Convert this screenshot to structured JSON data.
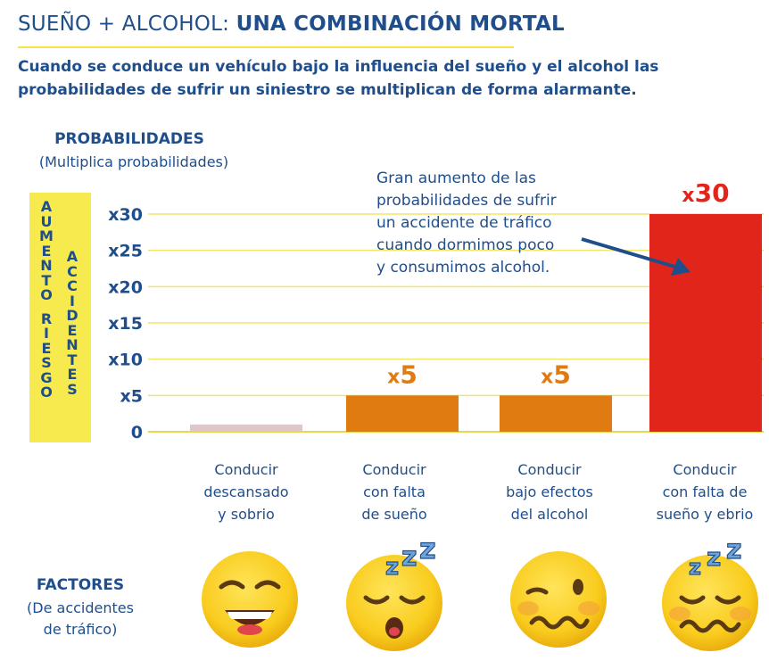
{
  "header": {
    "title_normal": "SUEÑO + ALCOHOL: ",
    "title_bold": "UNA COMBINACIÓN MORTAL",
    "subtitle_line1": "Cuando se conduce un vehículo bajo la influencia del sueño y el alcohol las",
    "subtitle_line2": "probabilidades de sufrir un siniestro se multiplican de forma alarmante."
  },
  "y_axis": {
    "title": "PROBABILIDADES",
    "subtitle": "(Multiplica probabilidades)",
    "side_label_1": "AUMENTO RIESGO",
    "side_label_2": "ACCIDENTES"
  },
  "annotation": {
    "lines": [
      "Gran aumento de las",
      "probabilidades de sufrir",
      "un accidente de tráfico",
      "cuando dormimos poco",
      "y consumimos alcohol."
    ]
  },
  "factors": {
    "title": "FACTORES",
    "subtitle_line1": "(De accidentes",
    "subtitle_line2": "de tráfico)",
    "emojis": [
      "happy-face-icon",
      "sleepy-face-icon",
      "woozy-face-icon",
      "sleepy-woozy-face-icon"
    ]
  },
  "chart_data": {
    "type": "bar",
    "title": "PROBABILIDADES",
    "ylabel": "(Multiplica probabilidades)",
    "y_ticks": [
      "0",
      "x5",
      "x10",
      "x15",
      "x20",
      "x25",
      "x30"
    ],
    "ylim": [
      0,
      30
    ],
    "categories": [
      [
        "Conducir",
        "descansado",
        "y sobrio"
      ],
      [
        "Conducir",
        "con falta",
        "de sueño"
      ],
      [
        "Conducir",
        "bajo efectos",
        "del alcohol"
      ],
      [
        "Conducir",
        "con falta de",
        "sueño y ebrio"
      ]
    ],
    "values": [
      1,
      5,
      5,
      30
    ],
    "data_labels": [
      "",
      "x5",
      "x5",
      "x30"
    ],
    "colors": [
      "#dcc7cb",
      "#e07b12",
      "#e07b12",
      "#e1251b"
    ],
    "label_colors": [
      "#e07b12",
      "#e07b12",
      "#e07b12",
      "#e1251b"
    ],
    "grid": true
  }
}
